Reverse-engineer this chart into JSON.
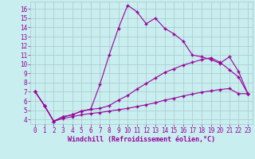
{
  "background_color": "#c8eef0",
  "grid_color": "#aac8c8",
  "line_color": "#990099",
  "xlabel": "Windchill (Refroidissement éolien,°C)",
  "xlim": [
    -0.5,
    23.5
  ],
  "ylim": [
    3.5,
    16.8
  ],
  "xticks": [
    0,
    1,
    2,
    3,
    4,
    5,
    6,
    7,
    8,
    9,
    10,
    11,
    12,
    13,
    14,
    15,
    16,
    17,
    18,
    19,
    20,
    21,
    22,
    23
  ],
  "yticks": [
    4,
    5,
    6,
    7,
    8,
    9,
    10,
    11,
    12,
    13,
    14,
    15,
    16
  ],
  "curve1_x": [
    0,
    1,
    2,
    3,
    4,
    5,
    6,
    7,
    8,
    9,
    10,
    11,
    12,
    13,
    14,
    15,
    16,
    17,
    18,
    19,
    20,
    21,
    22,
    23
  ],
  "curve1_y": [
    7.0,
    5.5,
    3.8,
    4.3,
    4.5,
    4.9,
    5.1,
    7.8,
    11.0,
    13.9,
    16.4,
    15.7,
    14.4,
    15.0,
    13.9,
    13.3,
    12.5,
    11.0,
    10.8,
    10.5,
    10.1,
    10.8,
    9.2,
    6.8
  ],
  "curve2_x": [
    0,
    1,
    2,
    3,
    4,
    5,
    6,
    7,
    8,
    9,
    10,
    11,
    12,
    13,
    14,
    15,
    16,
    17,
    18,
    19,
    20,
    21,
    22,
    23
  ],
  "curve2_y": [
    7.0,
    5.5,
    3.8,
    4.3,
    4.5,
    4.9,
    5.1,
    5.2,
    5.5,
    6.1,
    6.6,
    7.3,
    7.9,
    8.5,
    9.1,
    9.5,
    9.9,
    10.2,
    10.5,
    10.7,
    10.2,
    9.4,
    8.6,
    6.8
  ],
  "curve3_x": [
    0,
    1,
    2,
    3,
    4,
    5,
    6,
    7,
    8,
    9,
    10,
    11,
    12,
    13,
    14,
    15,
    16,
    17,
    18,
    19,
    20,
    21,
    22,
    23
  ],
  "curve3_y": [
    7.0,
    5.5,
    3.8,
    4.1,
    4.3,
    4.5,
    4.65,
    4.75,
    4.9,
    5.05,
    5.2,
    5.4,
    5.6,
    5.8,
    6.1,
    6.3,
    6.55,
    6.75,
    6.95,
    7.1,
    7.25,
    7.35,
    6.8,
    6.8
  ],
  "marker": "+",
  "markersize": 3,
  "linewidth": 0.8,
  "tick_fontsize": 5.5
}
